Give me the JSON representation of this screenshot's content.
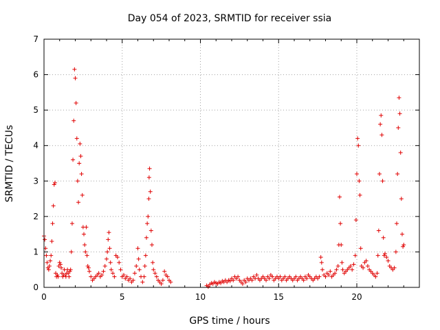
{
  "chart_data": {
    "type": "scatter",
    "title": "Day 054 of 2023, SRMTID for receiver ssia",
    "xlabel": "GPS time / hours",
    "ylabel": "SRMTID / TECUs",
    "xlim": [
      0,
      24
    ],
    "ylim": [
      0,
      7
    ],
    "xticks": [
      0,
      5,
      10,
      15,
      20
    ],
    "yticks": [
      0,
      1,
      2,
      3,
      4,
      5,
      6,
      7
    ],
    "grid": true,
    "marker": "plus",
    "color": "#e00000",
    "series": [
      {
        "name": "SRMTID",
        "points": [
          [
            0.0,
            1.45
          ],
          [
            0.05,
            1.35
          ],
          [
            0.1,
            1.1
          ],
          [
            0.15,
            0.9
          ],
          [
            0.2,
            0.7
          ],
          [
            0.25,
            0.55
          ],
          [
            0.3,
            0.5
          ],
          [
            0.35,
            0.6
          ],
          [
            0.4,
            0.75
          ],
          [
            0.45,
            0.9
          ],
          [
            0.5,
            1.3
          ],
          [
            0.55,
            1.8
          ],
          [
            0.6,
            2.3
          ],
          [
            0.65,
            2.9
          ],
          [
            0.7,
            2.95
          ],
          [
            0.75,
            0.4
          ],
          [
            0.8,
            0.3
          ],
          [
            0.85,
            0.35
          ],
          [
            0.9,
            0.3
          ],
          [
            0.95,
            0.6
          ],
          [
            1.0,
            0.7
          ],
          [
            1.05,
            0.65
          ],
          [
            1.1,
            0.55
          ],
          [
            1.15,
            0.4
          ],
          [
            1.2,
            0.3
          ],
          [
            1.25,
            0.35
          ],
          [
            1.3,
            0.5
          ],
          [
            1.35,
            0.35
          ],
          [
            1.4,
            0.3
          ],
          [
            1.45,
            0.4
          ],
          [
            1.5,
            0.5
          ],
          [
            1.55,
            0.4
          ],
          [
            1.6,
            0.3
          ],
          [
            1.65,
            0.45
          ],
          [
            1.7,
            0.5
          ],
          [
            1.75,
            1.0
          ],
          [
            1.8,
            1.8
          ],
          [
            1.85,
            3.6
          ],
          [
            1.9,
            4.7
          ],
          [
            1.95,
            6.15
          ],
          [
            2.0,
            5.9
          ],
          [
            2.05,
            5.2
          ],
          [
            2.1,
            4.2
          ],
          [
            2.15,
            3.0
          ],
          [
            2.2,
            2.4
          ],
          [
            2.25,
            3.5
          ],
          [
            2.3,
            4.05
          ],
          [
            2.35,
            3.7
          ],
          [
            2.4,
            3.2
          ],
          [
            2.45,
            2.6
          ],
          [
            2.5,
            1.7
          ],
          [
            2.55,
            1.5
          ],
          [
            2.6,
            1.2
          ],
          [
            2.65,
            1.0
          ],
          [
            2.7,
            1.7
          ],
          [
            2.75,
            0.9
          ],
          [
            2.8,
            0.6
          ],
          [
            2.85,
            0.55
          ],
          [
            2.9,
            0.45
          ],
          [
            3.0,
            0.3
          ],
          [
            3.1,
            0.2
          ],
          [
            3.2,
            0.25
          ],
          [
            3.3,
            0.3
          ],
          [
            3.4,
            0.35
          ],
          [
            3.5,
            0.4
          ],
          [
            3.6,
            0.3
          ],
          [
            3.7,
            0.35
          ],
          [
            3.8,
            0.45
          ],
          [
            3.9,
            0.6
          ],
          [
            4.0,
            0.8
          ],
          [
            4.05,
            1.0
          ],
          [
            4.1,
            1.35
          ],
          [
            4.15,
            1.55
          ],
          [
            4.2,
            1.1
          ],
          [
            4.25,
            0.7
          ],
          [
            4.3,
            0.5
          ],
          [
            4.4,
            0.4
          ],
          [
            4.5,
            0.3
          ],
          [
            4.6,
            0.9
          ],
          [
            4.7,
            0.85
          ],
          [
            4.8,
            0.7
          ],
          [
            4.9,
            0.5
          ],
          [
            5.0,
            0.3
          ],
          [
            5.1,
            0.35
          ],
          [
            5.2,
            0.25
          ],
          [
            5.3,
            0.3
          ],
          [
            5.4,
            0.2
          ],
          [
            5.5,
            0.25
          ],
          [
            5.6,
            0.15
          ],
          [
            5.7,
            0.2
          ],
          [
            5.8,
            0.4
          ],
          [
            5.9,
            0.6
          ],
          [
            6.0,
            1.1
          ],
          [
            6.05,
            0.8
          ],
          [
            6.1,
            0.5
          ],
          [
            6.2,
            0.3
          ],
          [
            6.3,
            0.15
          ],
          [
            6.4,
            0.3
          ],
          [
            6.45,
            0.6
          ],
          [
            6.5,
            0.9
          ],
          [
            6.55,
            1.4
          ],
          [
            6.6,
            1.8
          ],
          [
            6.65,
            2.0
          ],
          [
            6.7,
            2.5
          ],
          [
            6.72,
            3.1
          ],
          [
            6.75,
            3.35
          ],
          [
            6.8,
            2.7
          ],
          [
            6.85,
            1.6
          ],
          [
            6.9,
            1.2
          ],
          [
            6.95,
            0.7
          ],
          [
            7.0,
            0.5
          ],
          [
            7.1,
            0.4
          ],
          [
            7.2,
            0.3
          ],
          [
            7.3,
            0.2
          ],
          [
            7.4,
            0.15
          ],
          [
            7.5,
            0.1
          ],
          [
            7.6,
            0.2
          ],
          [
            7.7,
            0.45
          ],
          [
            7.8,
            0.35
          ],
          [
            7.9,
            0.3
          ],
          [
            8.0,
            0.2
          ],
          [
            8.1,
            0.15
          ],
          [
            10.4,
            0.05
          ],
          [
            10.5,
            0.02
          ],
          [
            10.6,
            0.08
          ],
          [
            10.7,
            0.12
          ],
          [
            10.8,
            0.1
          ],
          [
            10.9,
            0.15
          ],
          [
            11.0,
            0.12
          ],
          [
            11.1,
            0.1
          ],
          [
            11.2,
            0.15
          ],
          [
            11.3,
            0.12
          ],
          [
            11.4,
            0.18
          ],
          [
            11.5,
            0.15
          ],
          [
            11.6,
            0.2
          ],
          [
            11.7,
            0.15
          ],
          [
            11.8,
            0.2
          ],
          [
            11.9,
            0.18
          ],
          [
            12.0,
            0.25
          ],
          [
            12.1,
            0.2
          ],
          [
            12.2,
            0.3
          ],
          [
            12.3,
            0.25
          ],
          [
            12.4,
            0.3
          ],
          [
            12.5,
            0.2
          ],
          [
            12.6,
            0.15
          ],
          [
            12.7,
            0.1
          ],
          [
            12.8,
            0.2
          ],
          [
            12.9,
            0.15
          ],
          [
            13.0,
            0.25
          ],
          [
            13.1,
            0.2
          ],
          [
            13.2,
            0.25
          ],
          [
            13.3,
            0.2
          ],
          [
            13.4,
            0.3
          ],
          [
            13.5,
            0.25
          ],
          [
            13.6,
            0.35
          ],
          [
            13.7,
            0.25
          ],
          [
            13.8,
            0.2
          ],
          [
            13.9,
            0.25
          ],
          [
            14.0,
            0.3
          ],
          [
            14.1,
            0.25
          ],
          [
            14.2,
            0.2
          ],
          [
            14.3,
            0.3
          ],
          [
            14.4,
            0.25
          ],
          [
            14.5,
            0.35
          ],
          [
            14.6,
            0.3
          ],
          [
            14.7,
            0.2
          ],
          [
            14.8,
            0.25
          ],
          [
            14.9,
            0.3
          ],
          [
            15.0,
            0.25
          ],
          [
            15.1,
            0.3
          ],
          [
            15.2,
            0.2
          ],
          [
            15.3,
            0.25
          ],
          [
            15.4,
            0.3
          ],
          [
            15.5,
            0.2
          ],
          [
            15.6,
            0.25
          ],
          [
            15.7,
            0.3
          ],
          [
            15.8,
            0.25
          ],
          [
            15.9,
            0.2
          ],
          [
            16.0,
            0.25
          ],
          [
            16.1,
            0.3
          ],
          [
            16.2,
            0.2
          ],
          [
            16.3,
            0.25
          ],
          [
            16.4,
            0.3
          ],
          [
            16.5,
            0.25
          ],
          [
            16.6,
            0.2
          ],
          [
            16.7,
            0.3
          ],
          [
            16.8,
            0.25
          ],
          [
            16.9,
            0.35
          ],
          [
            17.0,
            0.3
          ],
          [
            17.1,
            0.25
          ],
          [
            17.2,
            0.2
          ],
          [
            17.3,
            0.25
          ],
          [
            17.4,
            0.3
          ],
          [
            17.5,
            0.25
          ],
          [
            17.6,
            0.3
          ],
          [
            17.7,
            0.85
          ],
          [
            17.75,
            0.7
          ],
          [
            17.8,
            0.5
          ],
          [
            17.9,
            0.35
          ],
          [
            18.0,
            0.3
          ],
          [
            18.1,
            0.4
          ],
          [
            18.2,
            0.35
          ],
          [
            18.3,
            0.45
          ],
          [
            18.4,
            0.3
          ],
          [
            18.5,
            0.35
          ],
          [
            18.6,
            0.4
          ],
          [
            18.7,
            0.5
          ],
          [
            18.8,
            0.6
          ],
          [
            18.85,
            1.2
          ],
          [
            18.9,
            2.55
          ],
          [
            18.95,
            1.8
          ],
          [
            19.0,
            1.2
          ],
          [
            19.05,
            0.7
          ],
          [
            19.1,
            0.5
          ],
          [
            19.2,
            0.4
          ],
          [
            19.3,
            0.45
          ],
          [
            19.4,
            0.5
          ],
          [
            19.5,
            0.55
          ],
          [
            19.6,
            0.6
          ],
          [
            19.7,
            0.5
          ],
          [
            19.8,
            0.65
          ],
          [
            19.9,
            0.9
          ],
          [
            19.95,
            1.9
          ],
          [
            20.0,
            3.2
          ],
          [
            20.05,
            4.2
          ],
          [
            20.1,
            4.0
          ],
          [
            20.15,
            3.0
          ],
          [
            20.2,
            2.6
          ],
          [
            20.25,
            1.1
          ],
          [
            20.3,
            0.6
          ],
          [
            20.4,
            0.55
          ],
          [
            20.5,
            0.7
          ],
          [
            20.6,
            0.75
          ],
          [
            20.7,
            0.6
          ],
          [
            20.8,
            0.5
          ],
          [
            20.9,
            0.45
          ],
          [
            21.0,
            0.4
          ],
          [
            21.1,
            0.35
          ],
          [
            21.2,
            0.3
          ],
          [
            21.3,
            0.4
          ],
          [
            21.35,
            0.9
          ],
          [
            21.4,
            1.6
          ],
          [
            21.45,
            3.2
          ],
          [
            21.5,
            4.6
          ],
          [
            21.55,
            4.85
          ],
          [
            21.6,
            4.3
          ],
          [
            21.65,
            3.0
          ],
          [
            21.7,
            1.4
          ],
          [
            21.75,
            0.9
          ],
          [
            21.8,
            0.95
          ],
          [
            21.9,
            0.85
          ],
          [
            22.0,
            0.75
          ],
          [
            22.1,
            0.6
          ],
          [
            22.2,
            0.55
          ],
          [
            22.3,
            0.5
          ],
          [
            22.4,
            0.55
          ],
          [
            22.5,
            1.0
          ],
          [
            22.55,
            1.8
          ],
          [
            22.6,
            3.2
          ],
          [
            22.65,
            4.5
          ],
          [
            22.7,
            5.35
          ],
          [
            22.75,
            4.9
          ],
          [
            22.8,
            3.8
          ],
          [
            22.85,
            2.5
          ],
          [
            22.9,
            1.5
          ],
          [
            22.95,
            1.15
          ],
          [
            23.0,
            1.2
          ]
        ]
      }
    ]
  }
}
